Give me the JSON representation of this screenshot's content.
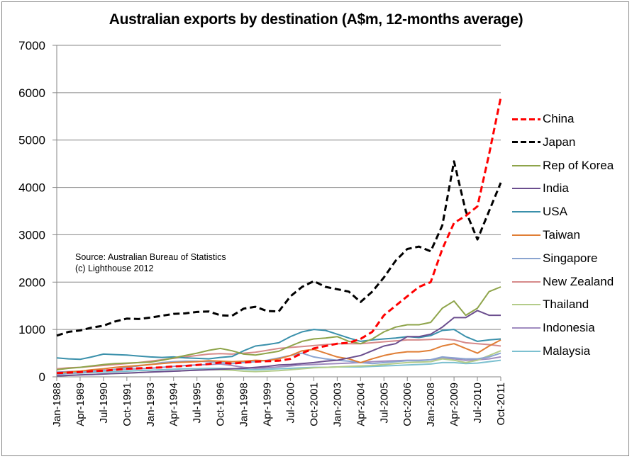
{
  "chart_data": {
    "type": "line",
    "title": "Australian exports by destination (A$m, 12-months average)",
    "xlabel": "",
    "ylabel": "",
    "ylim": [
      0,
      7000
    ],
    "yticks": [
      "0",
      "1000",
      "2000",
      "3000",
      "4000",
      "5000",
      "6000",
      "7000"
    ],
    "grid": true,
    "legend_position": "right",
    "x": [
      "Jan-1988",
      "",
      "Apr-1989",
      "",
      "Jul-1990",
      "",
      "Oct-1991",
      "",
      "Jan-1993",
      "",
      "Apr-1994",
      "",
      "Jul-1995",
      "",
      "Oct-1996",
      "",
      "Jan-1998",
      "",
      "Apr-1999",
      "",
      "Jul-2000",
      "",
      "Oct-2001",
      "",
      "Jan-2003",
      "",
      "Apr-2004",
      "",
      "Jul-2005",
      "",
      "Oct-2006",
      "",
      "Jan-2008",
      "",
      "Apr-2009",
      "",
      "Jul-2010",
      "",
      "Oct-2011"
    ],
    "xticks": [
      "Jan-1988",
      "Apr-1989",
      "Jul-1990",
      "Oct-1991",
      "Jan-1993",
      "Apr-1994",
      "Jul-1995",
      "Oct-1996",
      "Jan-1998",
      "Apr-1999",
      "Jul-2000",
      "Oct-2001",
      "Jan-2003",
      "Apr-2004",
      "Jul-2005",
      "Oct-2006",
      "Jan-2008",
      "Apr-2009",
      "Jul-2010",
      "Oct-2011"
    ],
    "series": [
      {
        "name": "China",
        "color": "#ff0000",
        "dashed": true,
        "values": [
          80,
          90,
          100,
          120,
          130,
          150,
          170,
          180,
          190,
          200,
          220,
          230,
          250,
          270,
          300,
          280,
          300,
          320,
          330,
          340,
          380,
          500,
          600,
          650,
          700,
          720,
          800,
          950,
          1300,
          1500,
          1700,
          1900,
          2000,
          2700,
          3250,
          3400,
          3600,
          4700,
          5900
        ]
      },
      {
        "name": "Japan",
        "color": "#000000",
        "dashed": true,
        "values": [
          870,
          950,
          980,
          1040,
          1080,
          1170,
          1230,
          1220,
          1250,
          1290,
          1330,
          1340,
          1370,
          1380,
          1300,
          1290,
          1440,
          1480,
          1390,
          1380,
          1700,
          1900,
          2020,
          1900,
          1850,
          1800,
          1580,
          1800,
          2100,
          2450,
          2700,
          2750,
          2650,
          3200,
          4550,
          3500,
          2900,
          3500,
          4100
        ]
      },
      {
        "name": "Rep of Korea",
        "color": "#8ea44a",
        "dashed": false,
        "values": [
          150,
          180,
          200,
          230,
          260,
          280,
          290,
          300,
          310,
          350,
          400,
          450,
          500,
          560,
          600,
          550,
          480,
          460,
          500,
          540,
          650,
          750,
          800,
          820,
          850,
          750,
          700,
          800,
          950,
          1050,
          1100,
          1100,
          1150,
          1450,
          1600,
          1300,
          1450,
          1800,
          1900
        ]
      },
      {
        "name": "India",
        "color": "#6b4e8e",
        "dashed": false,
        "values": [
          20,
          30,
          40,
          50,
          60,
          70,
          80,
          90,
          100,
          110,
          120,
          130,
          140,
          150,
          160,
          170,
          180,
          200,
          220,
          250,
          260,
          280,
          300,
          330,
          350,
          400,
          450,
          550,
          650,
          700,
          850,
          850,
          900,
          1050,
          1250,
          1250,
          1400,
          1300,
          1300
        ]
      },
      {
        "name": "USA",
        "color": "#3a90ab",
        "dashed": false,
        "values": [
          400,
          380,
          370,
          420,
          480,
          470,
          460,
          440,
          420,
          410,
          420,
          400,
          390,
          380,
          410,
          430,
          550,
          650,
          680,
          720,
          850,
          950,
          1000,
          980,
          900,
          820,
          750,
          780,
          800,
          820,
          850,
          830,
          870,
          980,
          1000,
          850,
          750,
          780,
          800
        ]
      },
      {
        "name": "Taiwan",
        "color": "#e07e35",
        "dashed": false,
        "values": [
          80,
          100,
          120,
          150,
          170,
          200,
          220,
          240,
          260,
          280,
          300,
          310,
          320,
          340,
          330,
          320,
          330,
          350,
          340,
          380,
          450,
          550,
          580,
          500,
          420,
          380,
          300,
          380,
          450,
          500,
          530,
          530,
          560,
          650,
          700,
          600,
          500,
          650,
          780
        ]
      },
      {
        "name": "Singapore",
        "color": "#8aa4d0",
        "dashed": false,
        "values": [
          50,
          70,
          90,
          110,
          130,
          160,
          200,
          230,
          260,
          300,
          320,
          330,
          330,
          320,
          300,
          280,
          300,
          320,
          350,
          400,
          450,
          500,
          420,
          380,
          350,
          330,
          300,
          280,
          300,
          320,
          340,
          340,
          360,
          420,
          400,
          380,
          380,
          420,
          500
        ]
      },
      {
        "name": "New Zealand",
        "color": "#d68a8a",
        "dashed": false,
        "values": [
          170,
          190,
          200,
          220,
          240,
          260,
          280,
          300,
          330,
          360,
          390,
          420,
          450,
          480,
          490,
          480,
          500,
          520,
          560,
          600,
          620,
          640,
          660,
          680,
          700,
          700,
          700,
          720,
          740,
          760,
          780,
          780,
          790,
          800,
          780,
          720,
          700,
          680,
          650
        ]
      },
      {
        "name": "Thailand",
        "color": "#b4cc8a",
        "dashed": false,
        "values": [
          20,
          30,
          40,
          50,
          60,
          70,
          80,
          90,
          100,
          110,
          120,
          130,
          140,
          150,
          150,
          140,
          120,
          110,
          120,
          130,
          150,
          170,
          190,
          200,
          210,
          220,
          230,
          240,
          260,
          280,
          300,
          310,
          320,
          380,
          350,
          300,
          350,
          450,
          550
        ]
      },
      {
        "name": "Indonesia",
        "color": "#a08cc0",
        "dashed": false,
        "values": [
          100,
          110,
          120,
          130,
          140,
          150,
          160,
          170,
          180,
          200,
          220,
          240,
          250,
          260,
          270,
          240,
          200,
          180,
          190,
          210,
          230,
          250,
          260,
          270,
          280,
          290,
          300,
          320,
          330,
          340,
          350,
          350,
          360,
          390,
          380,
          350,
          360,
          380,
          420
        ]
      },
      {
        "name": "Malaysia",
        "color": "#7cc0d0",
        "dashed": false,
        "values": [
          60,
          70,
          80,
          90,
          100,
          110,
          120,
          130,
          140,
          150,
          160,
          170,
          170,
          180,
          180,
          170,
          160,
          150,
          160,
          170,
          180,
          190,
          200,
          200,
          210,
          210,
          210,
          220,
          230,
          240,
          250,
          260,
          270,
          300,
          300,
          280,
          290,
          320,
          350
        ]
      }
    ],
    "annotations": [
      "Source: Australian Bureau of Statistics",
      "(c) Lighthouse 2012"
    ]
  }
}
